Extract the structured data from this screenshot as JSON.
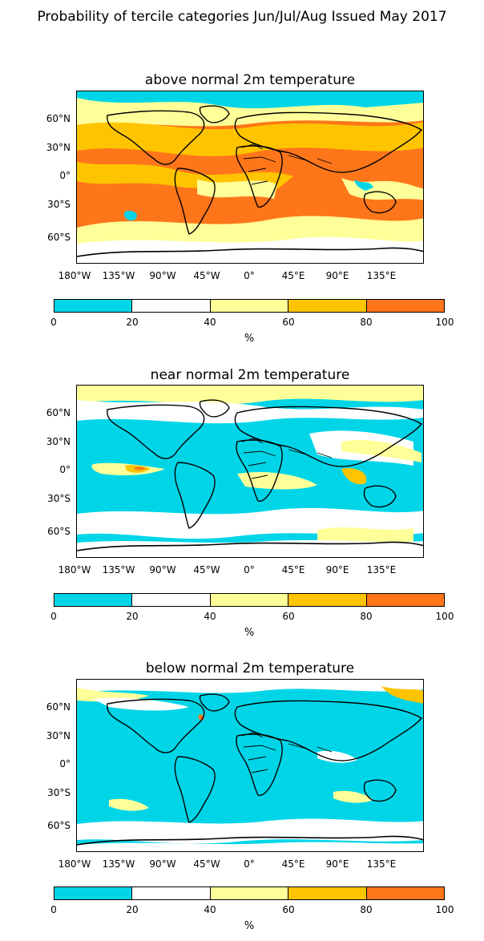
{
  "suptitle": "Probability of tercile categories Jun/Jul/Aug Issued May 2017",
  "colors": {
    "c0_20": "#00d5e8",
    "c20_40": "#ffffff",
    "c40_60": "#ffff99",
    "c60_80": "#ffc400",
    "c80_100": "#ff761a",
    "coast": "#000000"
  },
  "panels": [
    {
      "title": "above normal 2m temperature"
    },
    {
      "title": "near normal 2m temperature"
    },
    {
      "title": "below normal 2m temperature"
    }
  ],
  "lat_labels": [
    "60°N",
    "30°N",
    "0°",
    "30°S",
    "60°S"
  ],
  "lon_labels": [
    "180°W",
    "135°W",
    "90°W",
    "45°W",
    "0°",
    "45°E",
    "90°E",
    "135°E"
  ],
  "colorbar": {
    "ticks": [
      "0",
      "20",
      "40",
      "60",
      "80",
      "100"
    ],
    "unit": "%"
  }
}
